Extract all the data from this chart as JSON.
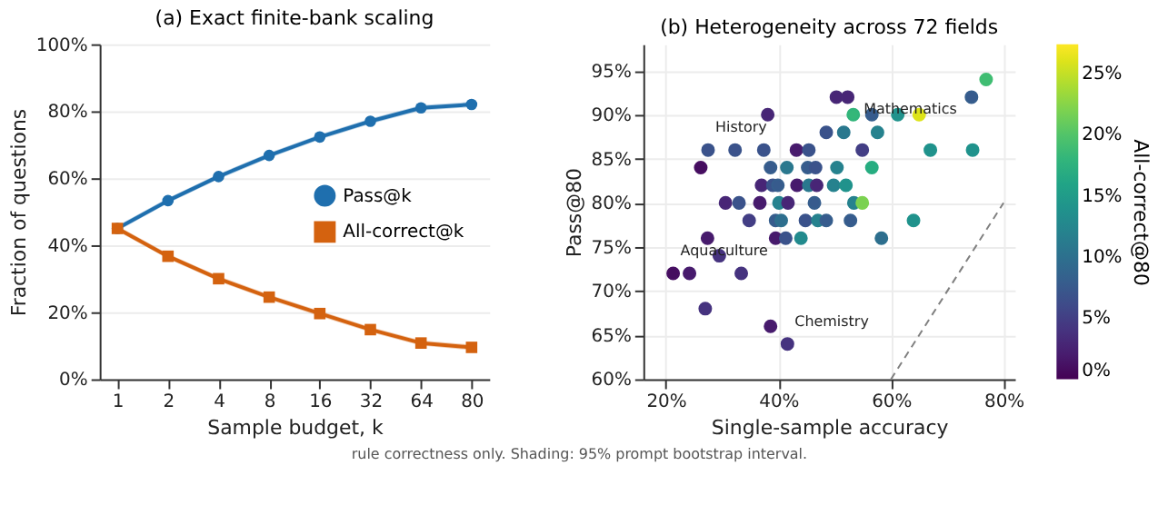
{
  "chart_data": [
    {
      "type": "line",
      "title": "(a) Exact finite-bank scaling",
      "xlabel": "Sample budget, k",
      "ylabel": "Fraction of questions",
      "categories": [
        "1",
        "2",
        "4",
        "8",
        "16",
        "32",
        "64",
        "80"
      ],
      "series": [
        {
          "name": "Pass@k",
          "color": "#1f6fae",
          "marker": "circle",
          "values": [
            45,
            53.3,
            60.5,
            66.8,
            72.3,
            77,
            81,
            82
          ],
          "lower": [
            44.2,
            52.5,
            59.7,
            66,
            71.5,
            76.2,
            80.2,
            81.2
          ],
          "upper": [
            45.8,
            54.1,
            61.3,
            67.6,
            73.1,
            77.8,
            81.8,
            82.8
          ]
        },
        {
          "name": "All-correct@k",
          "color": "#d4620f",
          "marker": "square",
          "values": [
            45,
            36.7,
            30,
            24.5,
            19.6,
            14.8,
            10.8,
            9.5
          ],
          "lower": [
            44.2,
            35.9,
            29.2,
            23.7,
            18.8,
            14,
            10,
            8.7
          ],
          "upper": [
            45.8,
            37.5,
            30.8,
            25.3,
            20.4,
            15.6,
            11.6,
            10.3
          ]
        }
      ],
      "ylim": [
        0,
        100
      ],
      "yticks": [
        {
          "value": 0,
          "label": "0%"
        },
        {
          "value": 20,
          "label": "20%"
        },
        {
          "value": 40,
          "label": "40%"
        },
        {
          "value": 60,
          "label": "60%"
        },
        {
          "value": 80,
          "label": "80%"
        },
        {
          "value": 100,
          "label": "100%"
        }
      ],
      "grid": "y",
      "legend": "right",
      "line_style": "solid",
      "annotations": [
        "rule correctness only. Shading: 95% prompt bootstrap interval."
      ]
    },
    {
      "type": "scatter",
      "title": "(b) Heterogeneity across 72 fields",
      "xlabel": "Single-sample accuracy",
      "ylabel": "Pass@80",
      "clabel": "All-correct@80",
      "series": [
        {
          "type": "scatter",
          "marker": "circle",
          "x": [
            76.9,
            50.3,
            52.3,
            74.3,
            38.1,
            53.3,
            56.6,
            61.2,
            65,
            48.5,
            51.6,
            57.6,
            27.5,
            32.3,
            37.4,
            43.2,
            45.4,
            54.9,
            67,
            74.5,
            26.2,
            38.6,
            41.5,
            45.2,
            46.6,
            50.4,
            56.6,
            37,
            39,
            39.9,
            43.3,
            45.4,
            46.8,
            49.8,
            52,
            30.6,
            33,
            36.7,
            40.1,
            41.7,
            46.4,
            53.4,
            54.9,
            34.8,
            39.5,
            40.5,
            44.8,
            47,
            48.5,
            52.8,
            64,
            27.4,
            39.5,
            41.3,
            44,
            58.3,
            29.5,
            21.3,
            24.2,
            33.4,
            27,
            38.6,
            41.6
          ],
          "values": [
            94,
            92,
            92,
            92,
            90,
            90,
            90,
            90,
            90,
            88,
            88,
            88,
            86,
            86,
            86,
            86,
            86,
            86,
            86,
            86,
            84,
            84,
            84,
            84,
            84,
            84,
            84,
            82,
            82,
            82,
            82,
            82,
            82,
            82,
            82,
            80,
            80,
            80,
            80,
            80,
            80,
            80,
            80,
            78,
            78,
            78,
            78,
            78,
            78,
            78,
            78,
            76,
            76,
            76,
            76,
            76,
            74,
            72,
            72,
            72,
            68,
            66,
            64
          ],
          "colors": [
            "#40bd72",
            "#482576",
            "#482576",
            "#375b8d",
            "#482576",
            "#35b779",
            "#375b8d",
            "#20928c",
            "#dde318",
            "#3b528b",
            "#2a788e",
            "#26828e",
            "#3b528b",
            "#3b528b",
            "#3b528b",
            "#471a6c",
            "#3b528b",
            "#433e85",
            "#20928c",
            "#20928c",
            "#450d5f",
            "#375b8d",
            "#2a788e",
            "#375b8d",
            "#3b528b",
            "#26828e",
            "#27ad81",
            "#482576",
            "#3b528b",
            "#375b8d",
            "#471a6c",
            "#2a788e",
            "#482576",
            "#26828e",
            "#20928c",
            "#482576",
            "#3b528b",
            "#471a6c",
            "#26828e",
            "#482576",
            "#375b8d",
            "#26828e",
            "#7ad151",
            "#433e85",
            "#375b8d",
            "#2e6e8e",
            "#3b528b",
            "#26828e",
            "#375b8d",
            "#375b8d",
            "#20928c",
            "#471a6c",
            "#471a6c",
            "#3b528b",
            "#228b8d",
            "#2e6e8e",
            "#46337f",
            "#450d5f",
            "#471a6c",
            "#46337f",
            "#46337f",
            "#471a6c",
            "#46337f"
          ],
          "cvalues": [
            19,
            3,
            3,
            8,
            3,
            18,
            8,
            14,
            26,
            7,
            11,
            12,
            7,
            7,
            7,
            2,
            7,
            5,
            14,
            14,
            1,
            8,
            11,
            8,
            7,
            12,
            17,
            3,
            7,
            8,
            2,
            11,
            3,
            12,
            14,
            3,
            7,
            2,
            12,
            3,
            8,
            12,
            22,
            5,
            8,
            10,
            7,
            12,
            8,
            8,
            14,
            2,
            2,
            7,
            13,
            10,
            4,
            1,
            2,
            4,
            4,
            2,
            4
          ]
        },
        {
          "type": "line",
          "color": "#808080",
          "line_style": "dashed",
          "x": [
            60,
            80
          ],
          "values": [
            60,
            80
          ]
        }
      ],
      "xlim": [
        16,
        82
      ],
      "ylim": [
        60,
        98
      ],
      "xticks": [
        {
          "value": 20,
          "label": "20%"
        },
        {
          "value": 40,
          "label": "40%"
        },
        {
          "value": 60,
          "label": "60%"
        },
        {
          "value": 80,
          "label": "80%"
        }
      ],
      "yticks": [
        {
          "value": 60,
          "label": "60%"
        },
        {
          "value": 65,
          "label": "65%"
        },
        {
          "value": 70,
          "label": "70%"
        },
        {
          "value": 75,
          "label": "75%"
        },
        {
          "value": 80,
          "label": "80%"
        },
        {
          "value": 85,
          "label": "85%"
        },
        {
          "value": 90,
          "label": "90%"
        },
        {
          "value": 95,
          "label": "95%"
        }
      ],
      "clim": [
        0,
        27.4
      ],
      "cticks": [
        {
          "value": 0,
          "label": "0%"
        },
        {
          "value": 5,
          "label": "5%"
        },
        {
          "value": 10,
          "label": "10%"
        },
        {
          "value": 15,
          "label": "15%"
        },
        {
          "value": 20,
          "label": "20%"
        },
        {
          "value": 25,
          "label": "25%"
        }
      ],
      "grid": true,
      "annotations": [
        {
          "text": "History",
          "x": 27.5,
          "y": 86
        },
        {
          "text": "Mathematics",
          "x": 74.3,
          "y": 92
        },
        {
          "text": "Aquaculture",
          "x": 21.3,
          "y": 72
        },
        {
          "text": "Chemistry",
          "x": 41.6,
          "y": 64
        }
      ]
    }
  ]
}
